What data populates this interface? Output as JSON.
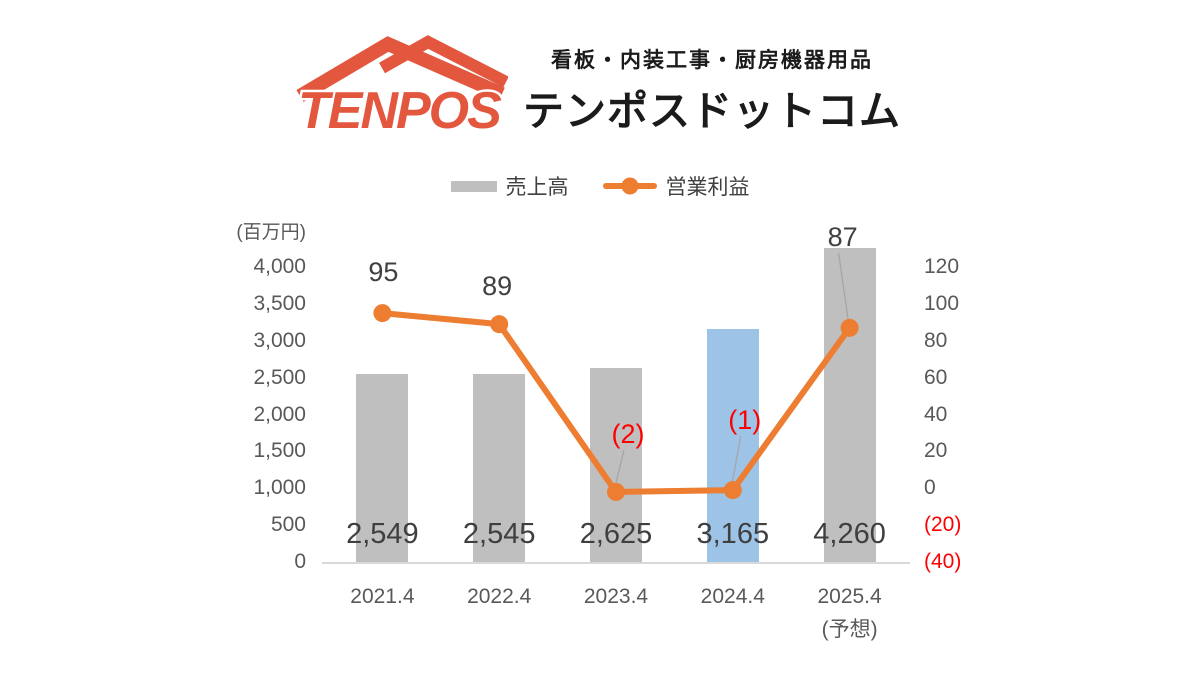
{
  "header": {
    "logo_text": "TENPOS",
    "tagline": "看板・内装工事・厨房機器用品",
    "company": "テンポスドットコム",
    "brand_color": "#e2573e",
    "text_color": "#1b1b1b"
  },
  "chart_data": {
    "type": "bar",
    "subtype": "combo-bar-line",
    "categories": [
      "2021.4",
      "2022.4",
      "2023.4",
      "2024.4",
      "2025.4"
    ],
    "last_category_note": "(予想)",
    "grid": false,
    "legend_position": "top",
    "bar_series": {
      "name": "売上高",
      "values": [
        2549,
        2545,
        2625,
        3165,
        4260
      ],
      "labels": [
        "2,549",
        "2,545",
        "2,625",
        "3,165",
        "4,260"
      ],
      "color": "#bfbfbf",
      "highlight_index": 3,
      "highlight_color": "#9dc3e6",
      "label_color": "#3f3f3f"
    },
    "line_series": {
      "name": "営業利益",
      "values": [
        95,
        89,
        -2,
        -1,
        87
      ],
      "labels": [
        "95",
        "89",
        "(2)",
        "(1)",
        "87"
      ],
      "color": "#ed7d31",
      "label_color": "#404040",
      "negative_label_color": "#ff0000"
    },
    "left_axis": {
      "unit": "(百万円)",
      "tick_labels": [
        "4,000",
        "3,500",
        "3,000",
        "2,500",
        "2,000",
        "1,500",
        "1,000",
        "500",
        "0"
      ],
      "tick_values": [
        4000,
        3500,
        3000,
        2500,
        2000,
        1500,
        1000,
        500,
        0
      ],
      "range": [
        0,
        4000
      ],
      "color": "#595959"
    },
    "right_axis": {
      "tick_labels": [
        "120",
        "100",
        "80",
        "60",
        "40",
        "20",
        "0",
        "(20)",
        "(40)"
      ],
      "tick_values": [
        120,
        100,
        80,
        60,
        40,
        20,
        0,
        -20,
        -40
      ],
      "range": [
        -40,
        120
      ],
      "color": "#595959",
      "negative_color": "#ff0000"
    },
    "axis_line_color": "#d9d9d9",
    "leader_line_color": "#a6a6a6"
  }
}
